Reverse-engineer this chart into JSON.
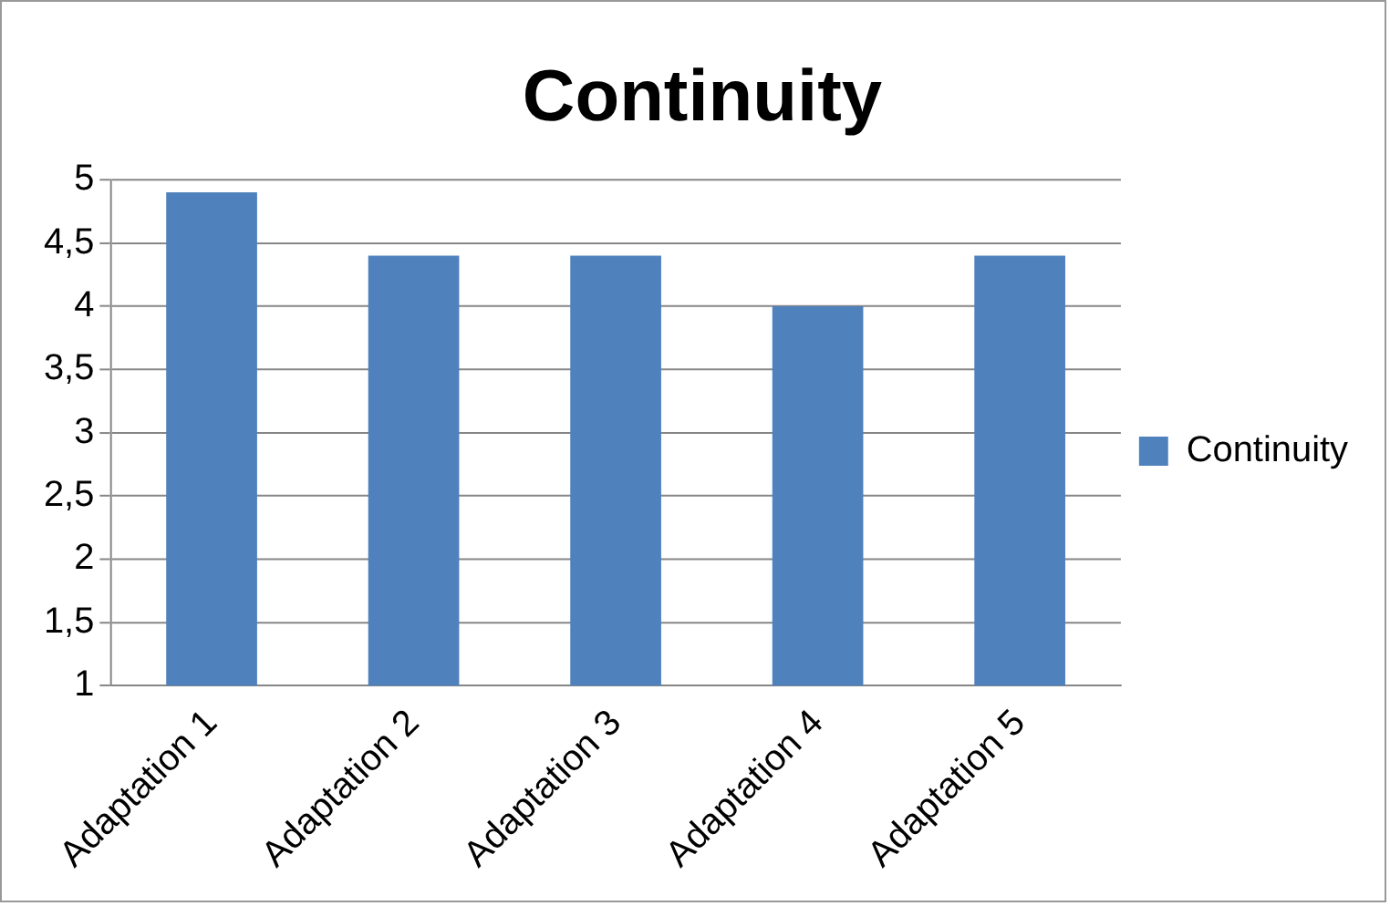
{
  "chart_data": {
    "type": "bar",
    "title": "Continuity",
    "categories": [
      "Adaptation 1",
      "Adaptation 2",
      "Adaptation 3",
      "Adaptation 4",
      "Adaptation 5"
    ],
    "series": [
      {
        "name": "Continuity",
        "color": "#4f81bd",
        "values": [
          4.9,
          4.4,
          4.4,
          4.0,
          4.4
        ]
      }
    ],
    "ylim": [
      1,
      5
    ],
    "yticks": [
      1,
      {
        "value": 1.5,
        "label": "1,5"
      },
      2,
      {
        "value": 2.5,
        "label": "2,5"
      },
      3,
      {
        "value": 3.5,
        "label": "3,5"
      },
      4,
      {
        "value": 4.5,
        "label": "4,5"
      },
      5
    ],
    "grid": "y",
    "legend": "right"
  }
}
